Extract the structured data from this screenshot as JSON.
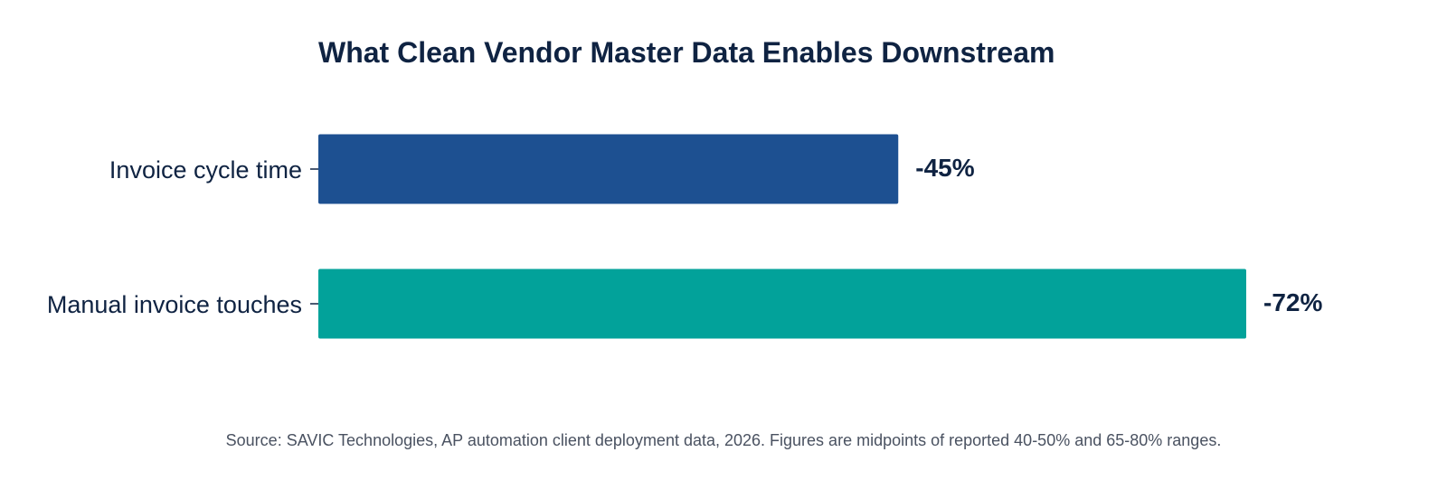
{
  "chart_data": {
    "type": "bar",
    "orientation": "horizontal",
    "title": "What Clean Vendor Master Data Enables Downstream",
    "categories": [
      "Invoice cycle time",
      "Manual invoice touches"
    ],
    "values": [
      -45,
      -72
    ],
    "value_labels": [
      "-45%",
      "-72%"
    ],
    "colors": [
      "#1d5091",
      "#02a29a"
    ],
    "xlabel": "",
    "ylabel": "",
    "xlim": [
      0,
      72
    ],
    "grid": false,
    "legend": "none"
  },
  "colors": {
    "title": "#0f2342",
    "label": "#0f2342",
    "source": "#4a5261"
  },
  "footer": {
    "source": "Source: SAVIC Technologies, AP automation client deployment data, 2026. Figures are midpoints of reported 40-50% and 65-80% ranges."
  }
}
